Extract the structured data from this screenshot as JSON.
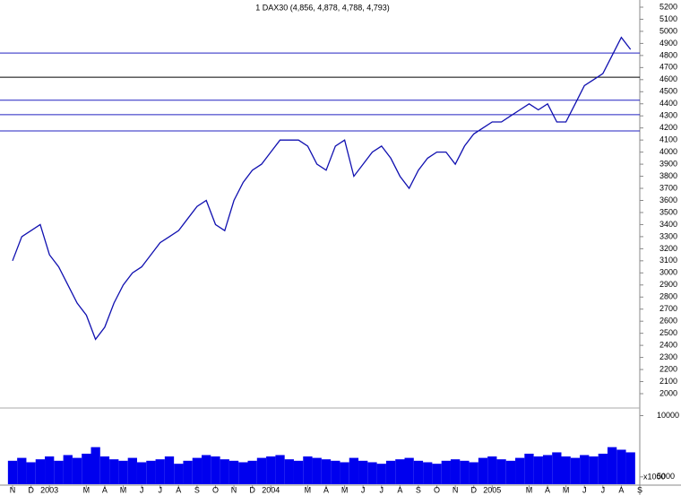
{
  "chart_data": {
    "type": "line",
    "title": "1 DAX30 (4,856, 4,878, 4,788, 4,793)",
    "categories": [
      "N",
      null,
      "D",
      null,
      "2003",
      null,
      null,
      null,
      "M",
      null,
      "A",
      null,
      "M",
      null,
      "J",
      null,
      "J",
      null,
      "A",
      null,
      "S",
      null,
      "O",
      null,
      "N",
      null,
      "D",
      null,
      "2004",
      null,
      null,
      null,
      "M",
      null,
      "A",
      null,
      "M",
      null,
      "J",
      null,
      "J",
      null,
      "A",
      null,
      "S",
      null,
      "O",
      null,
      "N",
      null,
      "D",
      null,
      "2005",
      null,
      null,
      null,
      "M",
      null,
      "A",
      null,
      "M",
      null,
      "J",
      null,
      "J",
      null,
      "A",
      null,
      "S"
    ],
    "series": [
      {
        "name": "DAX30",
        "color": "#1010b0",
        "values": [
          3100,
          3300,
          3350,
          3400,
          3150,
          3050,
          2900,
          2750,
          2650,
          2450,
          2550,
          2750,
          2900,
          3000,
          3050,
          3150,
          3250,
          3300,
          3350,
          3450,
          3550,
          3600,
          3400,
          3350,
          3600,
          3750,
          3850,
          3900,
          4000,
          4100,
          4100,
          4100,
          4050,
          3900,
          3850,
          4050,
          4100,
          3800,
          3900,
          4000,
          4050,
          3950,
          3800,
          3700,
          3850,
          3950,
          4000,
          4000,
          3900,
          4050,
          4150,
          4200,
          4250,
          4250,
          4300,
          4350,
          4400,
          4350,
          4400,
          4250,
          4250,
          4400,
          4550,
          4600,
          4650,
          4800,
          4950,
          4850,
          null
        ]
      },
      {
        "name": "Volume",
        "color": "#0000ee",
        "axis": "y2",
        "values": [
          6000,
          6200,
          5900,
          6100,
          6300,
          6000,
          6400,
          6200,
          6500,
          7000,
          6300,
          6100,
          6000,
          6200,
          5900,
          6000,
          6100,
          6300,
          5800,
          6000,
          6200,
          6400,
          6300,
          6100,
          6000,
          5900,
          6000,
          6200,
          6300,
          6400,
          6100,
          6000,
          6300,
          6200,
          6100,
          6000,
          5900,
          6200,
          6000,
          5900,
          5800,
          6000,
          6100,
          6200,
          6000,
          5900,
          5800,
          6000,
          6100,
          6000,
          5900,
          6200,
          6300,
          6100,
          6000,
          6200,
          6500,
          6300,
          6400,
          6600,
          6300,
          6200,
          6400,
          6300,
          6500,
          7000,
          6800,
          6600,
          null
        ]
      }
    ],
    "ylim": [
      2000,
      5200
    ],
    "yticks": [
      2000,
      2100,
      2200,
      2300,
      2400,
      2500,
      2600,
      2700,
      2800,
      2900,
      3000,
      3100,
      3200,
      3300,
      3400,
      3500,
      3600,
      3700,
      3800,
      3900,
      4000,
      4100,
      4200,
      4300,
      4400,
      4500,
      4600,
      4700,
      4800,
      4900,
      5000,
      5100,
      5200
    ],
    "y2lim": [
      4600,
      10900
    ],
    "y2ticks": [
      5000,
      10000
    ],
    "y2log": true,
    "y2_unit_label": "x1000",
    "hlines": [
      4820,
      4620,
      4430,
      4310,
      4175
    ],
    "hline_colors": [
      "#2020c0",
      "#000000",
      "#2020c0",
      "#2020c0",
      "#2020c0"
    ]
  }
}
